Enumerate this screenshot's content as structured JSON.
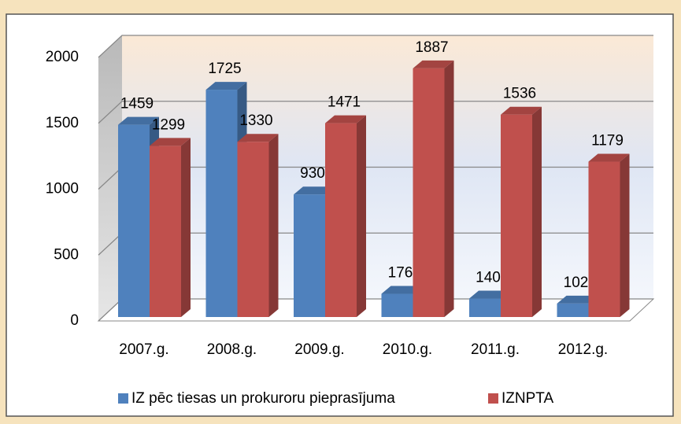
{
  "chart_data": {
    "type": "bar",
    "categories": [
      "2007.g.",
      "2008.g.",
      "2009.g.",
      "2010.g.",
      "2011.g.",
      "2012.g."
    ],
    "series": [
      {
        "name": "IZ pēc tiesas un prokuroru pieprasījuma",
        "color": "#4f81bd",
        "values": [
          1459,
          1725,
          930,
          176,
          140,
          102
        ]
      },
      {
        "name": "IZNPTA",
        "color": "#c0504d",
        "values": [
          1299,
          1330,
          1471,
          1887,
          1536,
          1179
        ]
      }
    ],
    "ylim": [
      0,
      2000
    ],
    "yticks": [
      0,
      500,
      1000,
      1500,
      2000
    ],
    "grid": true,
    "legend": "bottom"
  }
}
